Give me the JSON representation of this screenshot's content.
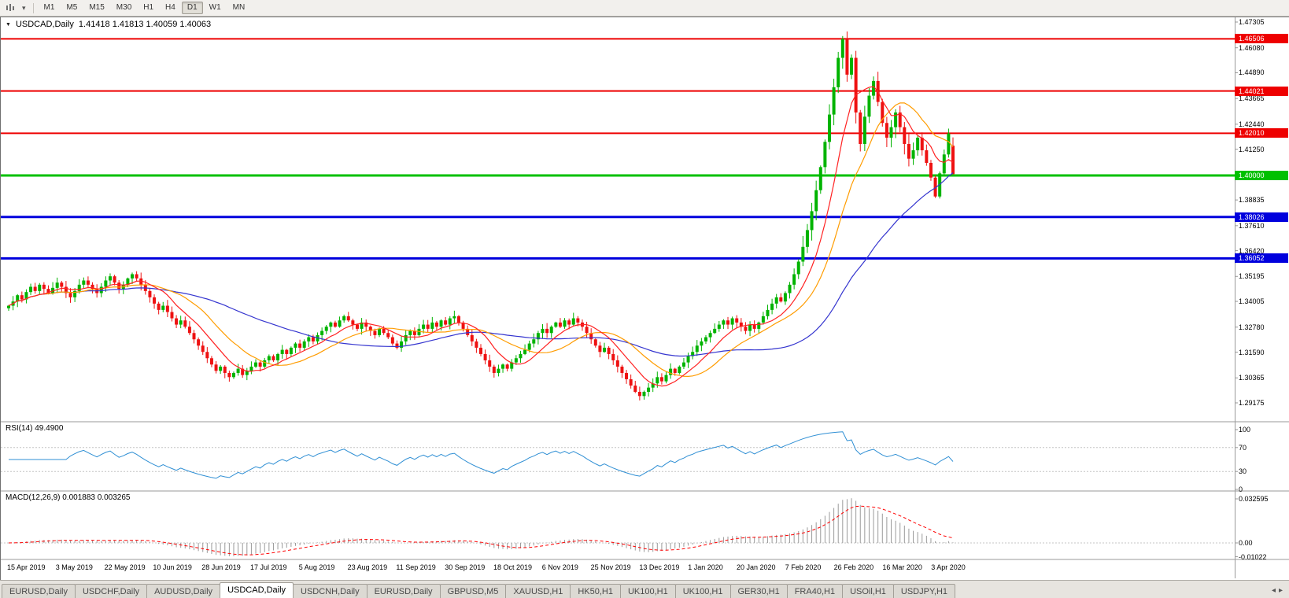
{
  "toolbar": {
    "timeframes": [
      "M1",
      "M5",
      "M15",
      "M30",
      "H1",
      "H4",
      "D1",
      "W1",
      "MN"
    ],
    "active_timeframe": "D1"
  },
  "window": {
    "collapse_icon": "▼",
    "symbol_label": "USDCAD,Daily",
    "ohlc_text": "1.41418 1.41813 1.40059 1.40063"
  },
  "chart_data": {
    "type": "candlestick",
    "symbol": "USDCAD",
    "timeframe": "Daily",
    "title": "USDCAD,Daily",
    "current_bar": {
      "open": 1.41418,
      "high": 1.41813,
      "low": 1.40059,
      "close": 1.40063
    },
    "price_range": {
      "top": 1.47305,
      "bottom": 1.29175
    },
    "price_axis_labels": [
      "1.47305",
      "1.46080",
      "1.44890",
      "1.43665",
      "1.42440",
      "1.41250",
      "1.40025",
      "1.38835",
      "1.37610",
      "1.36420",
      "1.35195",
      "1.34005",
      "1.32780",
      "1.31590",
      "1.30365",
      "1.29175"
    ],
    "date_labels": [
      "15 Apr 2019",
      "3 May 2019",
      "22 May 2019",
      "10 Jun 2019",
      "28 Jun 2019",
      "17 Jul 2019",
      "5 Aug 2019",
      "23 Aug 2019",
      "11 Sep 2019",
      "30 Sep 2019",
      "18 Oct 2019",
      "6 Nov 2019",
      "25 Nov 2019",
      "13 Dec 2019",
      "1 Jan 2020",
      "20 Jan 2020",
      "7 Feb 2020",
      "26 Feb 2020",
      "16 Mar 2020",
      "3 Apr 2020"
    ],
    "hlines": [
      {
        "price": 1.46506,
        "label": "1.46506",
        "color": "#ee0000",
        "width": 2
      },
      {
        "price": 1.44021,
        "label": "1.44021",
        "color": "#ee0000",
        "width": 2
      },
      {
        "price": 1.4201,
        "label": "1.42010",
        "color": "#ee0000",
        "width": 2
      },
      {
        "price": 1.4,
        "label": "1.40000",
        "color": "#00c000",
        "width": 3
      },
      {
        "price": 1.38026,
        "label": "1.38026",
        "color": "#0000dd",
        "width": 3
      },
      {
        "price": 1.36052,
        "label": "1.36052",
        "color": "#0000dd",
        "width": 3
      }
    ],
    "candle_colors": {
      "up": "#00b300",
      "down": "#ee1111"
    },
    "moving_averages": [
      {
        "name": "slow",
        "period": 45,
        "color": "#3535cf"
      },
      {
        "name": "medium",
        "period": 18,
        "color": "#ff9c00"
      },
      {
        "name": "fast",
        "period": 9,
        "color": "#ff2222"
      }
    ],
    "rsi": {
      "label": "RSI(14) 49.4900",
      "period": 14,
      "current": 49.49,
      "levels": [
        "100",
        "70",
        "30",
        "0"
      ],
      "line_color": "#2f8fd4"
    },
    "macd": {
      "label": "MACD(12,26,9) 0.001883 0.003265",
      "fast": 12,
      "slow": 26,
      "signal": 9,
      "current_macd": 0.001883,
      "current_signal": 0.003265,
      "levels": [
        "0.032595",
        "0.00",
        "-0.01022"
      ],
      "hist_color": "#9a9a9a",
      "signal_color": "#ff0000"
    },
    "closes": [
      1.338,
      1.34,
      1.343,
      1.341,
      1.3445,
      1.347,
      1.345,
      1.348,
      1.346,
      1.344,
      1.3465,
      1.349,
      1.347,
      1.344,
      1.342,
      1.345,
      1.348,
      1.35,
      1.348,
      1.346,
      1.344,
      1.347,
      1.35,
      1.352,
      1.349,
      1.346,
      1.348,
      1.351,
      1.353,
      1.351,
      1.348,
      1.345,
      1.342,
      1.339,
      1.336,
      1.338,
      1.335,
      1.332,
      1.329,
      1.331,
      1.328,
      1.325,
      1.322,
      1.319,
      1.316,
      1.313,
      1.31,
      1.307,
      1.309,
      1.306,
      1.304,
      1.306,
      1.308,
      1.305,
      1.307,
      1.309,
      1.311,
      1.309,
      1.312,
      1.314,
      1.312,
      1.315,
      1.317,
      1.315,
      1.318,
      1.32,
      1.318,
      1.321,
      1.323,
      1.321,
      1.324,
      1.326,
      1.328,
      1.33,
      1.328,
      1.331,
      1.333,
      1.331,
      1.329,
      1.327,
      1.33,
      1.328,
      1.326,
      1.324,
      1.327,
      1.325,
      1.323,
      1.32,
      1.318,
      1.321,
      1.324,
      1.326,
      1.324,
      1.327,
      1.329,
      1.327,
      1.33,
      1.328,
      1.331,
      1.329,
      1.332,
      1.333,
      1.33,
      1.327,
      1.324,
      1.321,
      1.318,
      1.315,
      1.312,
      1.309,
      1.306,
      1.308,
      1.31,
      1.308,
      1.311,
      1.313,
      1.315,
      1.317,
      1.32,
      1.322,
      1.325,
      1.327,
      1.325,
      1.328,
      1.33,
      1.328,
      1.331,
      1.329,
      1.332,
      1.33,
      1.328,
      1.325,
      1.322,
      1.319,
      1.316,
      1.318,
      1.315,
      1.312,
      1.309,
      1.306,
      1.303,
      1.3,
      1.297,
      1.295,
      1.297,
      1.299,
      1.301,
      1.304,
      1.302,
      1.305,
      1.308,
      1.306,
      1.309,
      1.311,
      1.314,
      1.316,
      1.319,
      1.321,
      1.323,
      1.325,
      1.327,
      1.329,
      1.331,
      1.329,
      1.332,
      1.33,
      1.328,
      1.326,
      1.329,
      1.327,
      1.33,
      1.333,
      1.336,
      1.339,
      1.342,
      1.34,
      1.344,
      1.348,
      1.353,
      1.359,
      1.366,
      1.374,
      1.383,
      1.393,
      1.404,
      1.416,
      1.429,
      1.442,
      1.456,
      1.465,
      1.448,
      1.456,
      1.43,
      1.415,
      1.428,
      1.438,
      1.445,
      1.435,
      1.425,
      1.418,
      1.423,
      1.43,
      1.423,
      1.415,
      1.408,
      1.412,
      1.418,
      1.412,
      1.406,
      1.399,
      1.39,
      1.401,
      1.41,
      1.42,
      1.40063
    ]
  },
  "tabs": {
    "items": [
      "EURUSD,Daily",
      "USDCHF,Daily",
      "AUDUSD,Daily",
      "USDCAD,Daily",
      "USDCNH,Daily",
      "EURUSD,Daily",
      "GBPUSD,M5",
      "XAUUSD,H1",
      "HK50,H1",
      "UK100,H1",
      "UK100,H1",
      "GER30,H1",
      "FRA40,H1",
      "USOil,H1",
      "USDJPY,H1"
    ],
    "active_index": 3,
    "scroll_left_icon": "◂",
    "scroll_right_icon": "▸"
  }
}
